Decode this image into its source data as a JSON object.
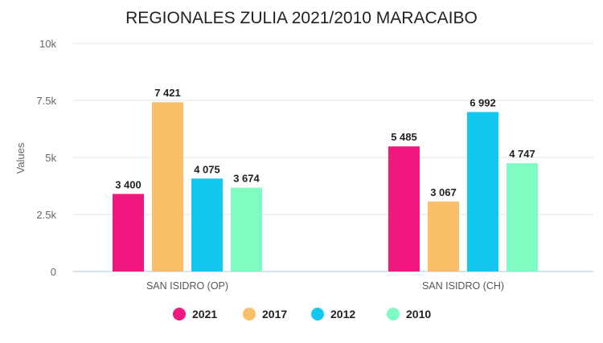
{
  "chart_data": {
    "type": "bar",
    "title": "REGIONALES ZULIA 2021/2010 MARACAIBO",
    "xlabel": "",
    "ylabel": "Values",
    "ylim": [
      0,
      10000
    ],
    "yticks": [
      0,
      2500,
      5000,
      7500,
      10000
    ],
    "ytick_labels": [
      "0",
      "2.5k",
      "5k",
      "7.5k",
      "10k"
    ],
    "categories": [
      "SAN ISIDRO (OP)",
      "SAN ISIDRO (CH)"
    ],
    "series": [
      {
        "name": "2021",
        "color": "#f0187e",
        "values": [
          3400,
          5485
        ],
        "labels": [
          "3 400",
          "5 485"
        ]
      },
      {
        "name": "2017",
        "color": "#fbbf6a",
        "values": [
          7421,
          3067
        ],
        "labels": [
          "7 421",
          "3 067"
        ]
      },
      {
        "name": "2012",
        "color": "#13c8ef",
        "values": [
          4075,
          6992
        ],
        "labels": [
          "4 075",
          "6 992"
        ]
      },
      {
        "name": "2010",
        "color": "#7ffcc2",
        "values": [
          3674,
          4747
        ],
        "labels": [
          "3 674",
          "4 747"
        ]
      }
    ],
    "grid": true,
    "legend": "bottom"
  }
}
